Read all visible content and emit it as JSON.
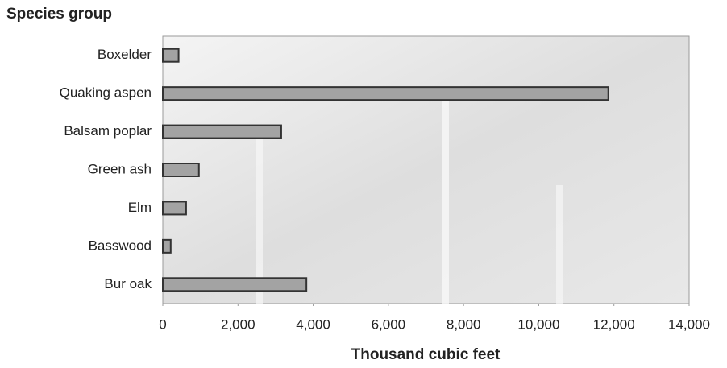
{
  "chart_data": {
    "type": "hbar",
    "title": "Species group",
    "x_label": "Thousand cubic feet",
    "categories": [
      "Boxelder",
      "Quaking aspen",
      "Balsam poplar",
      "Green ash",
      "Elm",
      "Basswood",
      "Bur oak"
    ],
    "values": [
      420,
      11850,
      3150,
      960,
      620,
      210,
      3820
    ],
    "color": "#a3a3a3",
    "xlim": [
      0,
      14000
    ],
    "xticks": [
      0,
      {
        "value": 2000,
        "label": "2,000"
      },
      {
        "value": 4000,
        "label": "4,000"
      },
      {
        "value": 6000,
        "label": "6,000"
      },
      {
        "value": 8000,
        "label": "8,000"
      },
      {
        "value": 10000,
        "label": "10,000"
      },
      {
        "value": 12000,
        "label": "12,000"
      },
      {
        "value": 14000,
        "label": "14,000"
      }
    ]
  }
}
